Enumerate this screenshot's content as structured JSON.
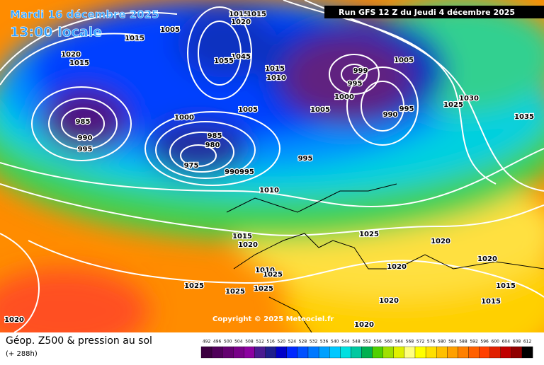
{
  "header": {
    "date": "Mardi 16 décembre 2025",
    "time": "13:00 locale"
  },
  "run": "Run GFS 12 Z du Jeudi 4 décembre 2025",
  "copyright": "Copyright © 2025 Meteociel.fr",
  "footer": {
    "title": "Géop. Z500 & pression au sol",
    "lead": "(+ 288h)"
  },
  "scale": {
    "labels": [
      492,
      496,
      500,
      504,
      508,
      512,
      516,
      520,
      524,
      528,
      532,
      536,
      540,
      544,
      548,
      552,
      556,
      560,
      564,
      568,
      572,
      576,
      580,
      584,
      588,
      592,
      596,
      600,
      604,
      608,
      612
    ]
  },
  "isobar_labels": [
    "1015",
    "1015",
    "1020",
    "1005",
    "1015",
    "1020",
    "1015",
    "1045",
    "1055",
    "985",
    "990",
    "995",
    "1000",
    "1005",
    "985",
    "980",
    "975",
    "990995",
    "995",
    "1010",
    "1015",
    "1010",
    "1000",
    "1005",
    "999",
    "995",
    "990",
    "995",
    "1005",
    "1030",
    "1025",
    "1035",
    "1015",
    "1020",
    "1010",
    "1025",
    "1025",
    "1025",
    "1025",
    "1020",
    "1025",
    "1020",
    "1020",
    "1020",
    "1020",
    "1015",
    "1015",
    "1020"
  ]
}
